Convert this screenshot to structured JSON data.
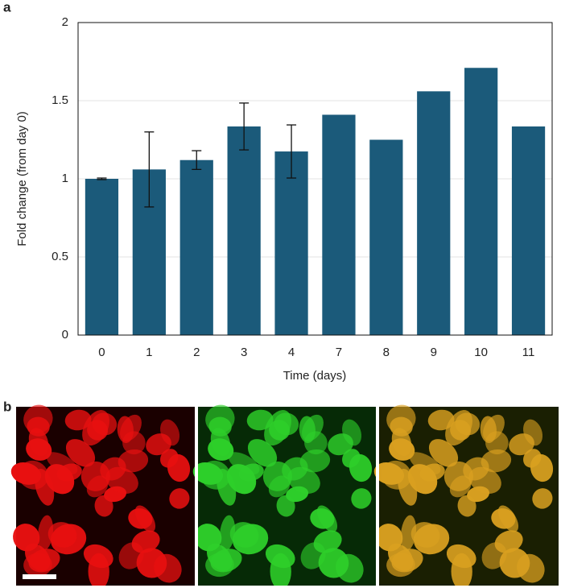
{
  "panel_labels": [
    "a",
    "b"
  ],
  "chart_data": {
    "type": "bar",
    "xlabel": "Time (days)",
    "ylabel": "Fold change (from day 0)",
    "categories": [
      "0",
      "1",
      "2",
      "3",
      "4",
      "7",
      "8",
      "9",
      "10",
      "11"
    ],
    "values": [
      1.0,
      1.06,
      1.12,
      1.335,
      1.175,
      1.41,
      1.25,
      1.56,
      1.71,
      1.335
    ],
    "errors": [
      0.005,
      0.24,
      0.06,
      0.15,
      0.17,
      null,
      null,
      null,
      null,
      null
    ],
    "color": "#1b5a7a",
    "ylim": [
      0,
      2
    ],
    "yticks": [
      0,
      0.5,
      1,
      1.5,
      2
    ],
    "grid": true
  }
}
